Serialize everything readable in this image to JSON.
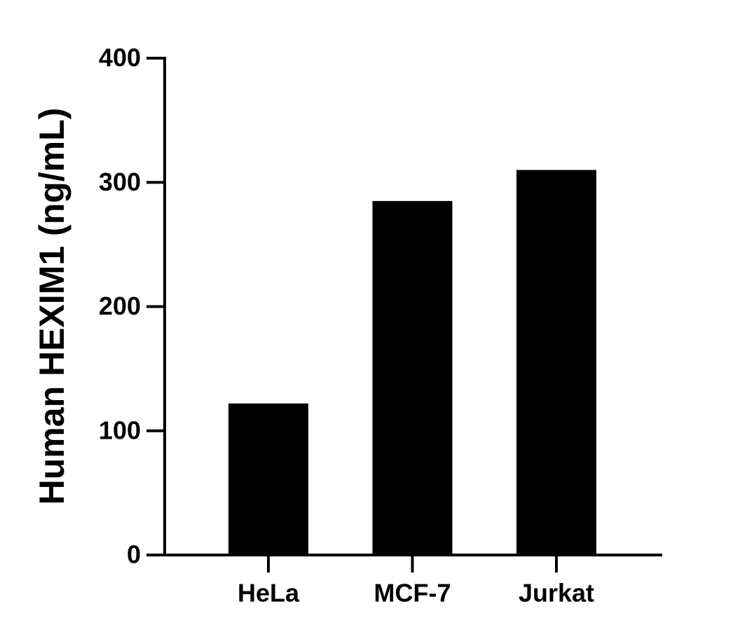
{
  "chart_data": {
    "type": "bar",
    "y_label": "Human HEXIM1 (ng/mL)",
    "categories": [
      "HeLa",
      "MCF-7",
      "Jurkat"
    ],
    "values": [
      122,
      285,
      310
    ],
    "color": "#000000",
    "ylim": [
      0,
      400
    ],
    "yticks": [
      0,
      100,
      200,
      300,
      400
    ]
  }
}
